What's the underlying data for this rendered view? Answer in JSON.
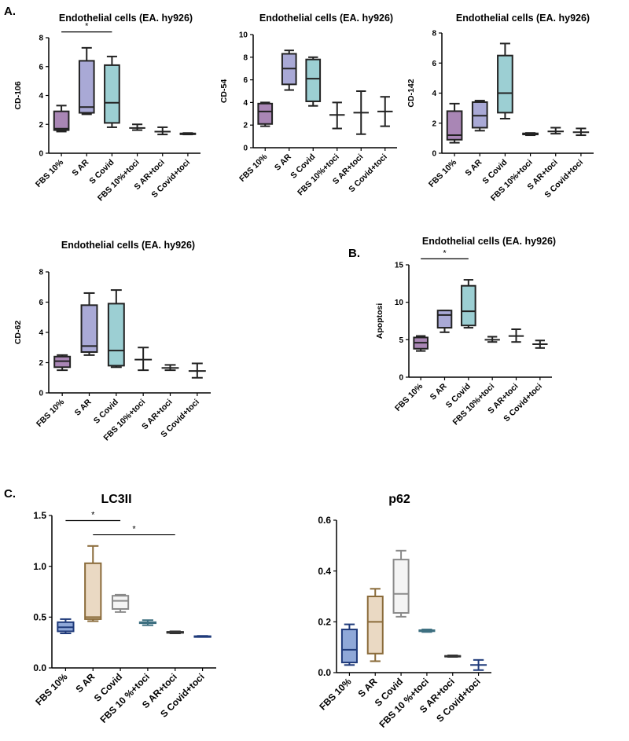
{
  "panel_labels": {
    "a": "A.",
    "b": "B.",
    "c": "C."
  },
  "chart_data": [
    {
      "id": "cd106",
      "type": "box",
      "title": "Endothelial cells (EA. hy926)",
      "ylabel": "CD-106",
      "categories": [
        "FBS 10%",
        "S AR",
        "S Covid",
        "FBS 10%+toci",
        "S AR+toci",
        "S Covid+toci"
      ],
      "ylim": [
        0,
        8
      ],
      "yticks": [
        0,
        2,
        4,
        6,
        8
      ],
      "grid": false,
      "boxes": [
        {
          "min": 1.5,
          "q1": 1.6,
          "median": 1.7,
          "q3": 2.9,
          "max": 3.3,
          "color": "#a986b5"
        },
        {
          "min": 2.7,
          "q1": 2.8,
          "median": 3.2,
          "q3": 6.4,
          "max": 7.3,
          "color": "#a9a9d6"
        },
        {
          "min": 1.8,
          "q1": 2.1,
          "median": 3.5,
          "q3": 6.1,
          "max": 6.7,
          "color": "#9ccfd3"
        },
        {
          "min": 1.6,
          "q1": 1.75,
          "median": 1.75,
          "q3": 1.75,
          "max": 2.0,
          "color": "none"
        },
        {
          "min": 1.3,
          "q1": 1.5,
          "median": 1.5,
          "q3": 1.5,
          "max": 1.8,
          "color": "none"
        },
        {
          "min": 1.3,
          "q1": 1.33,
          "median": 1.35,
          "q3": 1.37,
          "max": 1.4,
          "color": "none"
        }
      ],
      "significance": [
        {
          "from": 0,
          "to": 2,
          "y": 8.4,
          "label": "*"
        }
      ]
    },
    {
      "id": "cd54",
      "type": "box",
      "title": "Endothelial cells (EA. hy926)",
      "ylabel": "CD-54",
      "categories": [
        "FBS 10%",
        "S AR",
        "S Covid",
        "FBS 10%+toci",
        "S AR+toci",
        "S Covid+toci"
      ],
      "ylim": [
        0,
        10
      ],
      "yticks": [
        0,
        2,
        4,
        6,
        8,
        10
      ],
      "grid": false,
      "boxes": [
        {
          "min": 1.9,
          "q1": 2.1,
          "median": 3.2,
          "q3": 3.9,
          "max": 4.0,
          "color": "#a986b5"
        },
        {
          "min": 5.1,
          "q1": 5.6,
          "median": 7.0,
          "q3": 8.3,
          "max": 8.6,
          "color": "#a9a9d6"
        },
        {
          "min": 3.7,
          "q1": 4.1,
          "median": 6.1,
          "q3": 7.8,
          "max": 8.0,
          "color": "#9ccfd3"
        },
        {
          "min": 1.7,
          "q1": 2.9,
          "median": 2.9,
          "q3": 2.9,
          "max": 4.0,
          "color": "none"
        },
        {
          "min": 1.2,
          "q1": 3.1,
          "median": 3.1,
          "q3": 3.1,
          "max": 5.0,
          "color": "none"
        },
        {
          "min": 1.9,
          "q1": 3.2,
          "median": 3.2,
          "q3": 3.2,
          "max": 4.5,
          "color": "none"
        }
      ],
      "significance": []
    },
    {
      "id": "cd142",
      "type": "box",
      "title": "Endothelial cells (EA. hy926)",
      "ylabel": "CD-142",
      "categories": [
        "FBS 10%",
        "S AR",
        "S Covid",
        "FBS 10%+toci",
        "S AR+toci",
        "S Covid+toci"
      ],
      "ylim": [
        0,
        8
      ],
      "yticks": [
        0,
        2,
        4,
        6,
        8
      ],
      "grid": false,
      "boxes": [
        {
          "min": 0.7,
          "q1": 0.9,
          "median": 1.2,
          "q3": 2.8,
          "max": 3.3,
          "color": "#a986b5"
        },
        {
          "min": 1.5,
          "q1": 1.7,
          "median": 2.5,
          "q3": 3.4,
          "max": 3.5,
          "color": "#a9a9d6"
        },
        {
          "min": 2.3,
          "q1": 2.7,
          "median": 4.0,
          "q3": 6.5,
          "max": 7.3,
          "color": "#9ccfd3"
        },
        {
          "min": 1.2,
          "q1": 1.25,
          "median": 1.28,
          "q3": 1.32,
          "max": 1.35,
          "color": "none"
        },
        {
          "min": 1.3,
          "q1": 1.45,
          "median": 1.45,
          "q3": 1.45,
          "max": 1.7,
          "color": "none"
        },
        {
          "min": 1.2,
          "q1": 1.4,
          "median": 1.4,
          "q3": 1.4,
          "max": 1.65,
          "color": "none"
        }
      ],
      "significance": []
    },
    {
      "id": "cd62",
      "type": "box",
      "title": "Endothelial cells (EA. hy926)",
      "ylabel": "CD-62",
      "categories": [
        "FBS 10%",
        "S AR",
        "S Covid",
        "FBS 10%+toci",
        "S AR+toci",
        "S Covid+toci"
      ],
      "ylim": [
        0,
        8
      ],
      "yticks": [
        0,
        2,
        4,
        6,
        8
      ],
      "grid": false,
      "boxes": [
        {
          "min": 1.5,
          "q1": 1.7,
          "median": 2.1,
          "q3": 2.4,
          "max": 2.5,
          "color": "#a986b5"
        },
        {
          "min": 2.5,
          "q1": 2.7,
          "median": 3.1,
          "q3": 5.8,
          "max": 6.6,
          "color": "#a9a9d6"
        },
        {
          "min": 1.7,
          "q1": 1.8,
          "median": 2.8,
          "q3": 5.9,
          "max": 6.8,
          "color": "#9ccfd3"
        },
        {
          "min": 1.5,
          "q1": 2.2,
          "median": 2.2,
          "q3": 2.2,
          "max": 3.0,
          "color": "none"
        },
        {
          "min": 1.5,
          "q1": 1.65,
          "median": 1.65,
          "q3": 1.65,
          "max": 1.85,
          "color": "none"
        },
        {
          "min": 1.0,
          "q1": 1.45,
          "median": 1.45,
          "q3": 1.45,
          "max": 1.95,
          "color": "none"
        }
      ],
      "significance": []
    },
    {
      "id": "apoptosi",
      "type": "box",
      "title": "Endothelial cells (EA. hy926)",
      "ylabel": "Apoptosi",
      "categories": [
        "FBS 10%",
        "S AR",
        "S Covid",
        "FBS 10%+toci",
        "S AR+toci",
        "S Covid+toci"
      ],
      "ylim": [
        0,
        15
      ],
      "yticks": [
        0,
        5,
        10,
        15
      ],
      "grid": false,
      "boxes": [
        {
          "min": 3.5,
          "q1": 3.8,
          "median": 4.6,
          "q3": 5.3,
          "max": 5.5,
          "color": "#a986b5"
        },
        {
          "min": 6.0,
          "q1": 6.6,
          "median": 8.3,
          "q3": 8.9,
          "max": 8.9,
          "color": "#a9a9d6"
        },
        {
          "min": 6.6,
          "q1": 6.9,
          "median": 8.8,
          "q3": 12.2,
          "max": 13.0,
          "color": "#9ccfd3"
        },
        {
          "min": 4.7,
          "q1": 5.0,
          "median": 5.0,
          "q3": 5.0,
          "max": 5.4,
          "color": "none"
        },
        {
          "min": 4.7,
          "q1": 5.5,
          "median": 5.5,
          "q3": 5.5,
          "max": 6.4,
          "color": "none"
        },
        {
          "min": 3.9,
          "q1": 4.4,
          "median": 4.4,
          "q3": 4.4,
          "max": 4.9,
          "color": "none"
        }
      ],
      "significance": [
        {
          "from": 0,
          "to": 2,
          "y": 15.8,
          "label": "*"
        }
      ]
    },
    {
      "id": "lc3ii",
      "type": "box",
      "title": "LC3II",
      "ylabel": "",
      "categories": [
        "FBS 10%",
        "S AR",
        "S Covid",
        "FBS 10 %+toci",
        "S AR+toci",
        "S Covid+toci"
      ],
      "ylim": [
        0,
        1.5
      ],
      "yticks": [
        "0.0",
        "0.5",
        "1.0",
        "1.5"
      ],
      "grid": false,
      "boxes": [
        {
          "min": 0.34,
          "q1": 0.36,
          "median": 0.4,
          "q3": 0.45,
          "max": 0.48,
          "color": "#8fa8d8",
          "stroke": "#1f3a7a"
        },
        {
          "min": 0.46,
          "q1": 0.48,
          "median": 0.5,
          "q3": 1.03,
          "max": 1.2,
          "color": "#ead9c3",
          "stroke": "#8a6b3a"
        },
        {
          "min": 0.55,
          "q1": 0.58,
          "median": 0.66,
          "q3": 0.71,
          "max": 0.72,
          "color": "#f4f4f4",
          "stroke": "#8a8a8a"
        },
        {
          "min": 0.42,
          "q1": 0.44,
          "median": 0.445,
          "q3": 0.45,
          "max": 0.47,
          "color": "#cfe3ea",
          "stroke": "#3d6f80"
        },
        {
          "min": 0.34,
          "q1": 0.345,
          "median": 0.35,
          "q3": 0.355,
          "max": 0.36,
          "color": "none",
          "stroke": "#333333"
        },
        {
          "min": 0.305,
          "q1": 0.308,
          "median": 0.31,
          "q3": 0.312,
          "max": 0.315,
          "color": "none",
          "stroke": "#1f3a7a"
        }
      ],
      "significance": [
        {
          "from": 0,
          "to": 2,
          "y": 1.45,
          "label": "*"
        },
        {
          "from": 1,
          "to": 4,
          "y": 1.31,
          "label": "*"
        }
      ]
    },
    {
      "id": "p62",
      "type": "box",
      "title": "p62",
      "ylabel": "",
      "categories": [
        "FBS 10%",
        "S AR",
        "S Covid",
        "FBS 10 %+toci",
        "S AR+toci",
        "S Covid+toci"
      ],
      "ylim": [
        0,
        0.6
      ],
      "yticks": [
        "0.0",
        "0.2",
        "0.4",
        "0.6"
      ],
      "grid": false,
      "boxes": [
        {
          "min": 0.03,
          "q1": 0.04,
          "median": 0.09,
          "q3": 0.17,
          "max": 0.19,
          "color": "#8fa8d8",
          "stroke": "#1f3a7a"
        },
        {
          "min": 0.045,
          "q1": 0.075,
          "median": 0.2,
          "q3": 0.3,
          "max": 0.33,
          "color": "#ead9c3",
          "stroke": "#8a6b3a"
        },
        {
          "min": 0.22,
          "q1": 0.235,
          "median": 0.31,
          "q3": 0.445,
          "max": 0.48,
          "color": "#f4f4f4",
          "stroke": "#8a8a8a"
        },
        {
          "min": 0.16,
          "q1": 0.163,
          "median": 0.165,
          "q3": 0.167,
          "max": 0.17,
          "color": "none",
          "stroke": "#3d6f80"
        },
        {
          "min": 0.062,
          "q1": 0.064,
          "median": 0.065,
          "q3": 0.066,
          "max": 0.068,
          "color": "none",
          "stroke": "#333333"
        },
        {
          "min": 0.01,
          "q1": 0.03,
          "median": 0.03,
          "q3": 0.03,
          "max": 0.05,
          "color": "none",
          "stroke": "#1f3a7a"
        }
      ],
      "significance": []
    }
  ]
}
